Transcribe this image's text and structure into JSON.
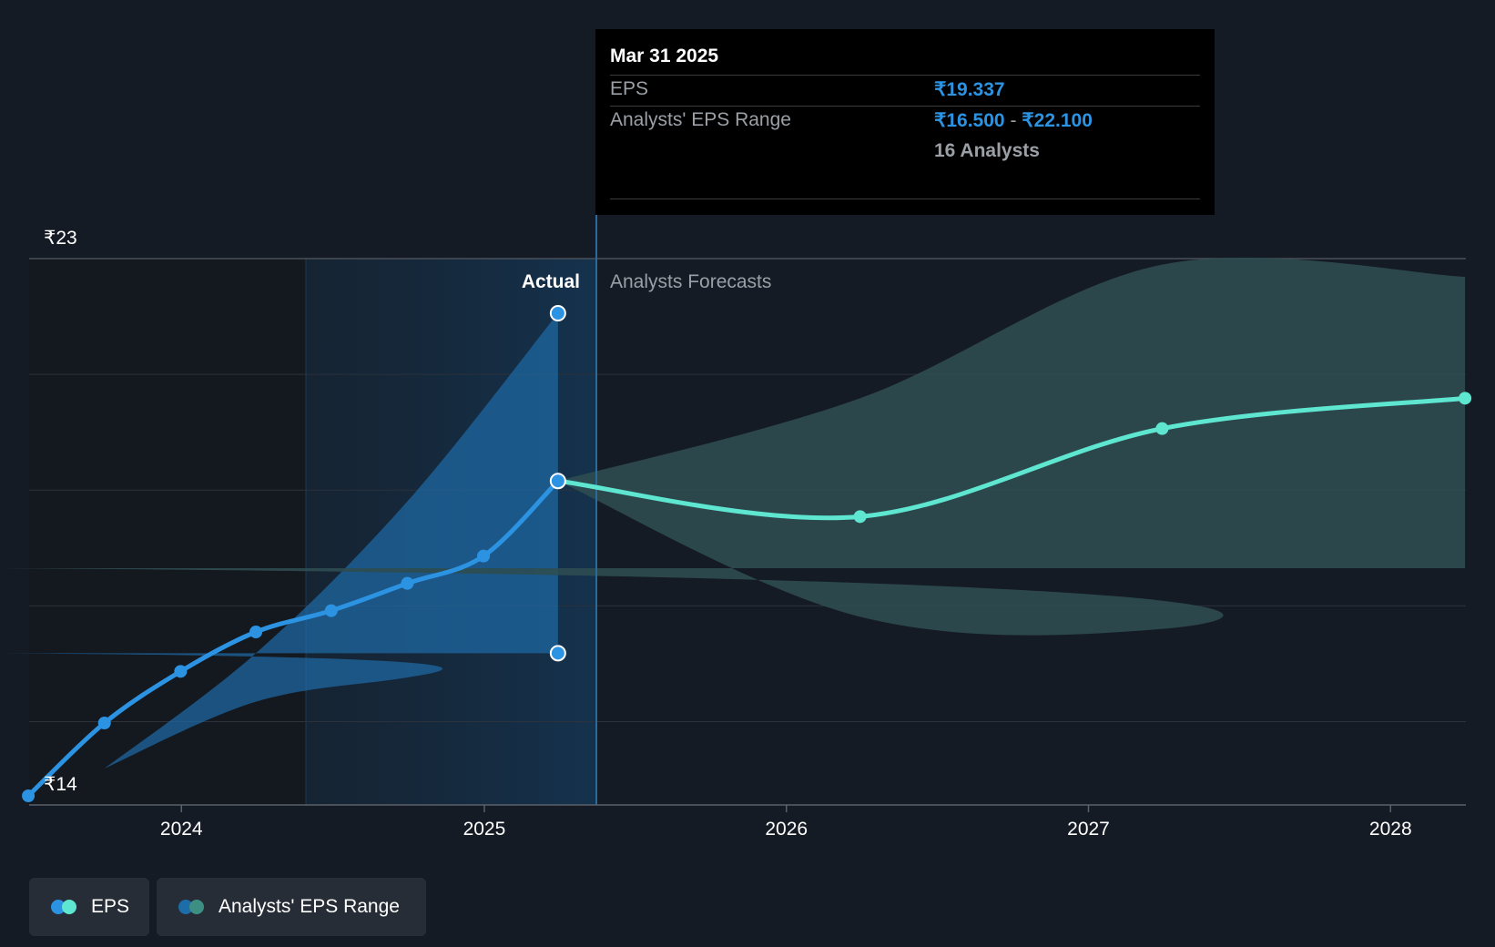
{
  "tooltip": {
    "date": "Mar 31 2025",
    "eps_label": "EPS",
    "eps_value": "₹19.337",
    "range_label": "Analysts' EPS Range",
    "range_low": "₹16.500",
    "range_sep": "-",
    "range_high": "₹22.100",
    "analysts": "16 Analysts"
  },
  "sections": {
    "actual": "Actual",
    "forecast": "Analysts Forecasts"
  },
  "legend": {
    "eps": "EPS",
    "range": "Analysts' EPS Range",
    "eps_colors": [
      "#2c93e3",
      "#5ee6d0"
    ],
    "range_colors": [
      "#1d6ea8",
      "#3d8f84"
    ]
  },
  "colors": {
    "actual_line": "#2c93e3",
    "forecast_line": "#5ee6d0",
    "actual_band": "#1f6aa5",
    "forecast_band": "#2e4c51",
    "background": "#151b24"
  },
  "chart_data": {
    "type": "line",
    "x_axis": {
      "type": "date",
      "ticks": [
        "2024",
        "2025",
        "2026",
        "2027",
        "2028"
      ],
      "range": [
        "2023-07-01",
        "2028-04-01"
      ]
    },
    "y_axis": {
      "ticks": [
        "₹14",
        "₹23"
      ],
      "ylim": [
        14,
        23
      ],
      "grid": true
    },
    "highlight_date": "2025-03-31",
    "series": [
      {
        "name": "EPS",
        "kind": "actual",
        "points": [
          [
            "2023-06-30",
            14.15
          ],
          [
            "2023-09-30",
            15.35
          ],
          [
            "2023-12-31",
            16.2
          ],
          [
            "2024-03-31",
            16.85
          ],
          [
            "2024-06-30",
            17.2
          ],
          [
            "2024-09-30",
            17.65
          ],
          [
            "2024-12-31",
            18.1
          ],
          [
            "2025-03-31",
            19.337
          ]
        ]
      },
      {
        "name": "EPS",
        "kind": "forecast",
        "points": [
          [
            "2025-03-31",
            19.337
          ],
          [
            "2026-03-31",
            18.75
          ],
          [
            "2027-03-31",
            20.2
          ],
          [
            "2028-03-31",
            20.7
          ]
        ]
      }
    ],
    "ranges": [
      {
        "name": "Analysts' EPS Range",
        "kind": "actual",
        "points": [
          [
            "2023-09-30",
            14.6,
            14.6
          ],
          [
            "2024-03-31",
            15.7,
            16.5
          ],
          [
            "2024-09-30",
            16.1,
            19.0
          ],
          [
            "2025-03-31",
            16.5,
            22.1
          ]
        ]
      },
      {
        "name": "Analysts' EPS Range",
        "kind": "forecast",
        "points": [
          [
            "2025-03-31",
            19.337,
            19.337
          ],
          [
            "2026-03-31",
            17.1,
            20.7
          ],
          [
            "2027-03-31",
            16.9,
            22.9
          ],
          [
            "2028-03-31",
            17.9,
            22.7
          ]
        ]
      }
    ]
  }
}
